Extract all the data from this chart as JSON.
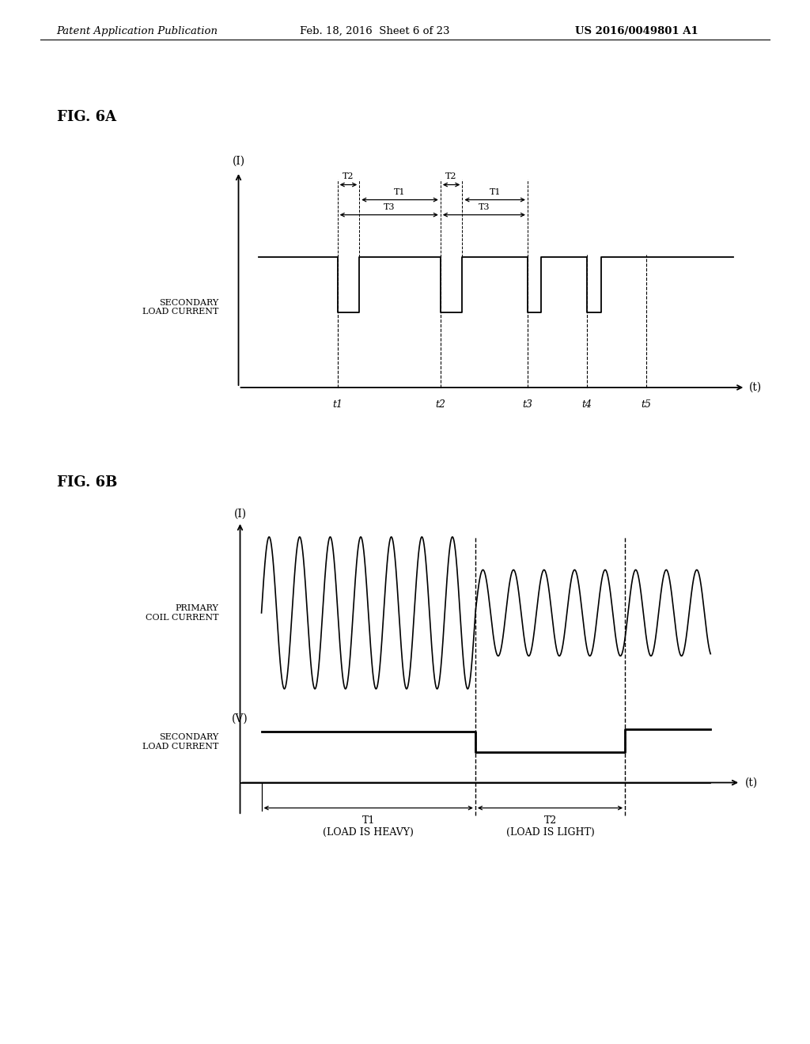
{
  "bg_color": "#ffffff",
  "header_text": "Patent Application Publication",
  "header_date": "Feb. 18, 2016  Sheet 6 of 23",
  "header_patent": "US 2016/0049801 A1",
  "fig6a_label": "FIG. 6A",
  "fig6b_label": "FIG. 6B",
  "fig6a_ylabel": "(I)",
  "fig6a_xlabel": "(t)",
  "fig6a_signal_label": "SECONDARY\nLOAD CURRENT",
  "fig6a_t_labels": [
    "t1",
    "t2",
    "t3",
    "t4",
    "t5"
  ],
  "fig6b_ylabel_i": "(I)",
  "fig6b_ylabel_v": "(V)",
  "fig6b_xlabel": "(t)",
  "fig6b_label_primary": "PRIMARY\nCOIL CURRENT",
  "fig6b_label_secondary": "SECONDARY\nLOAD CURRENT",
  "fig6b_t1_label": "T1\n(LOAD IS HEAVY)",
  "fig6b_t2_label": "T2\n(LOAD IS LIGHT)"
}
